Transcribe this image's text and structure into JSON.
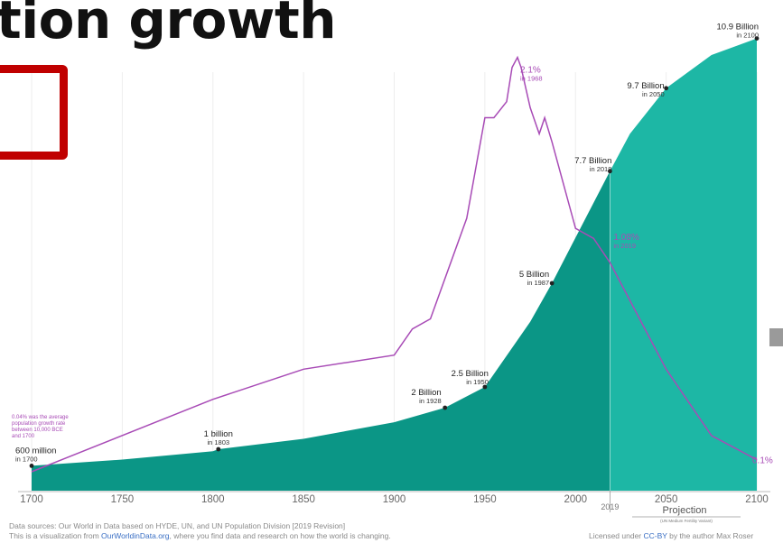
{
  "page": {
    "title": "tion growth",
    "footer": {
      "sources": "Data sources: Our World in Data based on HYDE, UN, and UN Population Division [2019 Revision]",
      "viz_prefix": "This is a visualization from ",
      "viz_link": "OurWorldinData.org",
      "viz_suffix": ", where you find data and research on how the world is changing.",
      "license_prefix": "Licensed under ",
      "license_link": "CC-BY",
      "license_suffix": " by the author Max Roser"
    }
  },
  "chart_data": {
    "type": "area",
    "xlim": [
      1700,
      2100
    ],
    "grid": true,
    "x_ticks": [
      "1700",
      "1750",
      "1800",
      "1850",
      "1900",
      "1950",
      "2000",
      "2050",
      "2100"
    ],
    "extra_tick": "2019",
    "projection_label": "Projection",
    "projection_sublabel": "(UN Medium Fertility Variant)",
    "projection_start": 2019,
    "colors": {
      "area": "#0b9686",
      "projection_area": "#1db7a5",
      "growth_line": "#a84bb6",
      "growth_text": "#a84bb6"
    },
    "population": {
      "x": [
        1700,
        1750,
        1800,
        1803,
        1850,
        1900,
        1928,
        1950,
        1975,
        1987,
        2000,
        2019,
        2030,
        2050,
        2075,
        2100
      ],
      "y": [
        0.6,
        0.75,
        0.95,
        1.0,
        1.25,
        1.65,
        2.0,
        2.5,
        4.07,
        5.0,
        6.1,
        7.7,
        8.6,
        9.7,
        10.5,
        10.9
      ],
      "unit": "billion"
    },
    "growth_rate": {
      "x": [
        1700,
        1800,
        1850,
        1900,
        1910,
        1920,
        1940,
        1950,
        1955,
        1962,
        1965,
        1968,
        1970,
        1975,
        1980,
        1983,
        1987,
        2000,
        2010,
        2019,
        2050,
        2075,
        2100
      ],
      "y": [
        0.04,
        0.4,
        0.55,
        0.62,
        0.75,
        0.8,
        1.3,
        1.8,
        1.8,
        1.88,
        2.05,
        2.1,
        2.05,
        1.85,
        1.72,
        1.8,
        1.68,
        1.25,
        1.2,
        1.08,
        0.55,
        0.22,
        0.1
      ],
      "unit": "%"
    },
    "annotations": [
      {
        "series": "population",
        "x": 1700,
        "y": 0.6,
        "label": "600 million",
        "sublabel": "in 1700"
      },
      {
        "series": "population",
        "x": 1803,
        "y": 1.0,
        "label": "1 billion",
        "sublabel": "in 1803"
      },
      {
        "series": "population",
        "x": 1928,
        "y": 2.0,
        "label": "2 Billion",
        "sublabel": "in 1928"
      },
      {
        "series": "population",
        "x": 1950,
        "y": 2.5,
        "label": "2.5 Billion",
        "sublabel": "in 1950"
      },
      {
        "series": "population",
        "x": 1987,
        "y": 5.0,
        "label": "5 Billion",
        "sublabel": "in 1987"
      },
      {
        "series": "population",
        "x": 2019,
        "y": 7.7,
        "label": "7.7 Billion",
        "sublabel": "in 2019"
      },
      {
        "series": "population",
        "x": 2050,
        "y": 9.7,
        "label": "9.7 Billion",
        "sublabel": "in 2050"
      },
      {
        "series": "population",
        "x": 2100,
        "y": 10.9,
        "label": "10.9 Billion",
        "sublabel": "in 2100"
      },
      {
        "series": "growth",
        "x": 1968,
        "y": 2.1,
        "label": "2.1%",
        "sublabel": "in 1968"
      },
      {
        "series": "growth",
        "x": 2019,
        "y": 1.08,
        "label": "1.08%",
        "sublabel": "in 2019"
      },
      {
        "series": "growth",
        "x": 2100,
        "y": 0.1,
        "label": "0.1%",
        "sublabel": ""
      }
    ],
    "note_lines": [
      "0.04% was the average",
      "population growth rate",
      "between 10,000 BCE",
      "and 1700"
    ]
  }
}
